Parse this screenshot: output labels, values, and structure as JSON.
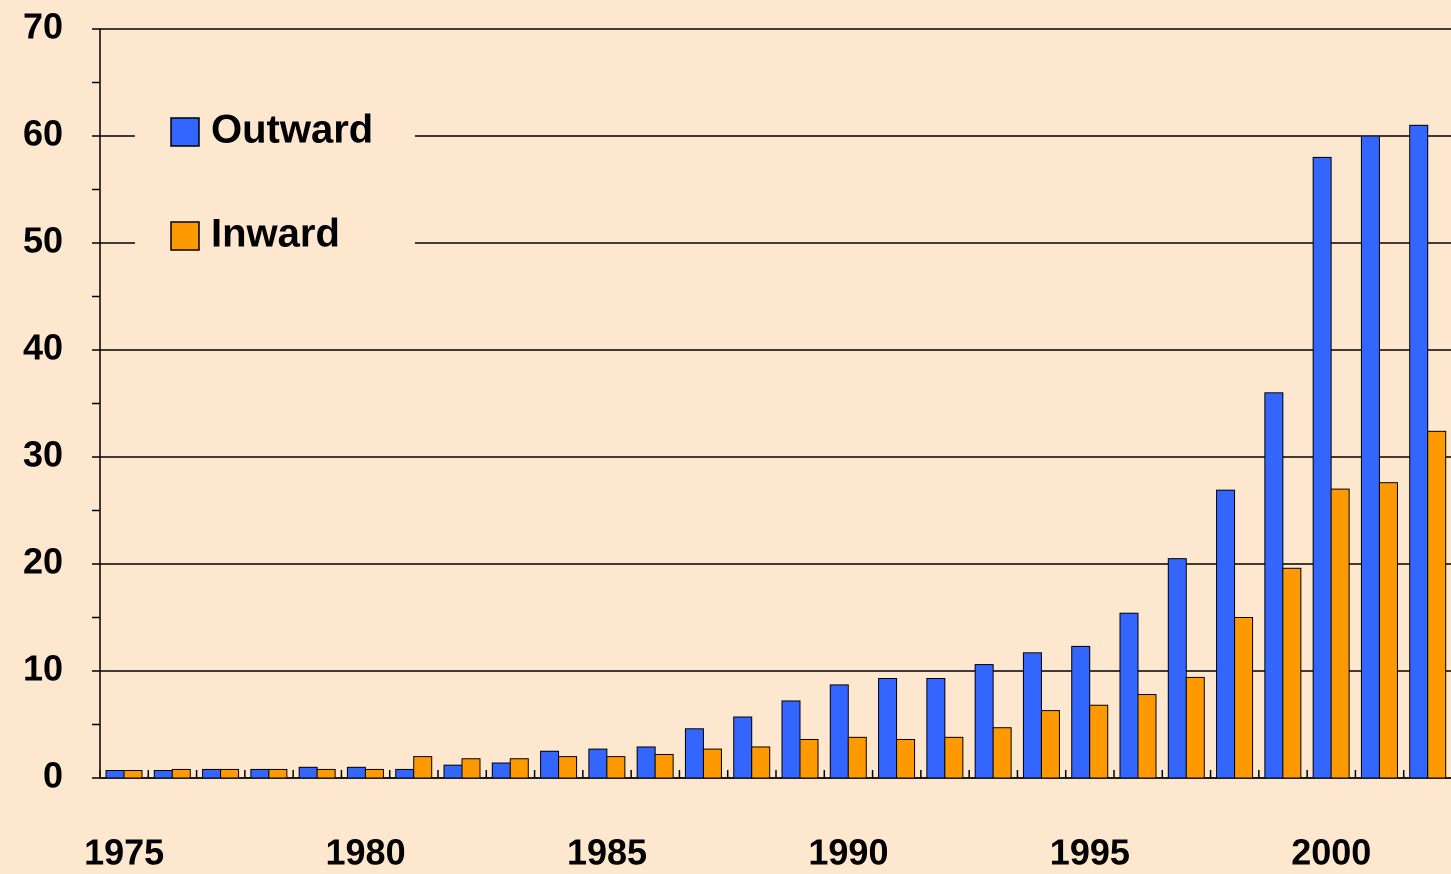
{
  "chart_data": {
    "type": "bar",
    "categories": [
      "1975",
      null,
      null,
      null,
      null,
      "1980",
      null,
      null,
      null,
      null,
      "1985",
      null,
      null,
      null,
      null,
      "1990",
      null,
      null,
      null,
      null,
      "1995",
      null,
      null,
      null,
      null,
      "2000",
      null,
      null
    ],
    "series": [
      {
        "name": "Outward",
        "color": "#3366ff",
        "values": [
          0.7,
          0.7,
          0.8,
          0.8,
          1.0,
          1.0,
          0.8,
          1.2,
          1.4,
          2.5,
          2.7,
          2.9,
          4.6,
          5.7,
          7.2,
          8.7,
          9.3,
          9.3,
          10.6,
          11.7,
          12.3,
          15.4,
          20.5,
          26.9,
          36,
          58,
          60,
          61
        ]
      },
      {
        "name": "Inward",
        "color": "#ff9900",
        "values": [
          0.7,
          0.8,
          0.8,
          0.8,
          0.8,
          0.8,
          2.0,
          1.8,
          1.8,
          2.0,
          2.0,
          2.2,
          2.7,
          2.9,
          3.6,
          3.8,
          3.6,
          3.8,
          4.7,
          6.3,
          6.8,
          7.8,
          9.4,
          15,
          19.6,
          27,
          27.6,
          32.4
        ]
      }
    ],
    "ylim": [
      0,
      70
    ],
    "yticks": [
      0,
      10,
      20,
      30,
      40,
      50,
      60,
      70
    ],
    "yminorticks": [
      5,
      15,
      25,
      35,
      45,
      55,
      65
    ],
    "grid": true,
    "legend": "top-left"
  }
}
